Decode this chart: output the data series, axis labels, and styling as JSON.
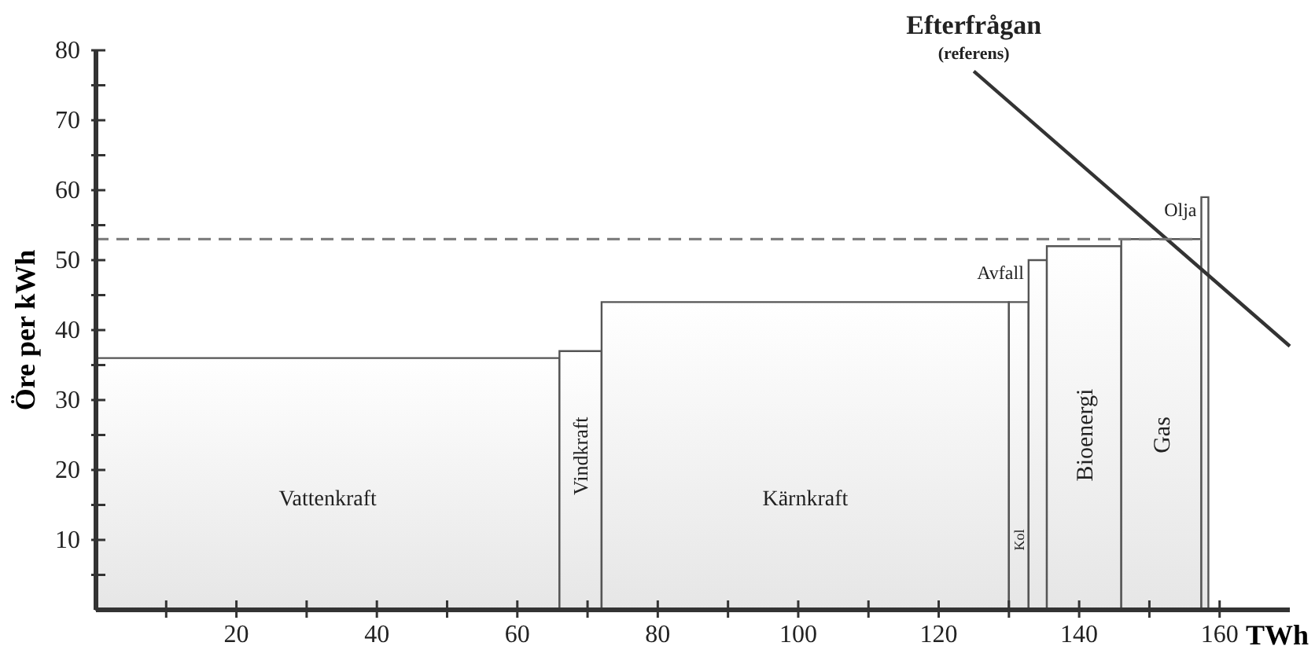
{
  "chart_data": {
    "type": "area",
    "xlabel": "TWh",
    "ylabel": "Öre per kWh",
    "xlim": [
      0,
      170
    ],
    "ylim": [
      0,
      80
    ],
    "xticks": [
      {
        "value": 10,
        "label": null
      },
      20,
      {
        "value": 30,
        "label": null
      },
      40,
      {
        "value": 50,
        "label": null
      },
      60,
      {
        "value": 70,
        "label": null
      },
      80,
      {
        "value": 90,
        "label": null
      },
      100,
      {
        "value": 110,
        "label": null
      },
      120,
      {
        "value": 130,
        "label": null
      },
      140,
      {
        "value": 150,
        "label": null
      },
      160
    ],
    "yticks": [
      {
        "value": 5,
        "label": null
      },
      10,
      {
        "value": 15,
        "label": null
      },
      20,
      {
        "value": 25,
        "label": null
      },
      30,
      {
        "value": 35,
        "label": null
      },
      40,
      {
        "value": 45,
        "label": null
      },
      50,
      {
        "value": 55,
        "label": null
      },
      60,
      {
        "value": 65,
        "label": null
      },
      70,
      {
        "value": 75,
        "label": null
      },
      80
    ],
    "series": [
      {
        "name": "Vattenkraft",
        "color": "#555555",
        "x": [
          0,
          66
        ],
        "values": [
          36,
          36
        ]
      },
      {
        "name": "Vindkraft",
        "color": "#555555",
        "x": [
          66,
          72
        ],
        "values": [
          37,
          37
        ]
      },
      {
        "name": "Kärnkraft",
        "color": "#555555",
        "x": [
          72,
          130
        ],
        "values": [
          44,
          44
        ]
      },
      {
        "name": "Kol",
        "color": "#555555",
        "x": [
          130,
          132.8
        ],
        "values": [
          44,
          44
        ]
      },
      {
        "name": "Avfall",
        "color": "#555555",
        "x": [
          132.8,
          135.4
        ],
        "values": [
          50,
          50
        ]
      },
      {
        "name": "Bioenergi",
        "color": "#555555",
        "x": [
          135.4,
          146
        ],
        "values": [
          52,
          52
        ]
      },
      {
        "name": "Gas",
        "color": "#555555",
        "x": [
          146,
          157.4
        ],
        "values": [
          53,
          53
        ]
      },
      {
        "name": "Olja",
        "color": "#555555",
        "x": [
          157.4,
          158.4
        ],
        "values": [
          59,
          59
        ]
      },
      {
        "name": "Efterfrågan",
        "type": "line",
        "color": "#333333",
        "x": [
          125,
          170
        ],
        "values": [
          77,
          37.7
        ]
      }
    ],
    "annotations": [
      {
        "text": "(referens)",
        "x": 125,
        "y": 77
      }
    ],
    "ref_lines": [
      {
        "axis": "y",
        "value": 53,
        "label": null,
        "color": "#777777",
        "line_style": "dashed"
      }
    ],
    "grid": false
  }
}
